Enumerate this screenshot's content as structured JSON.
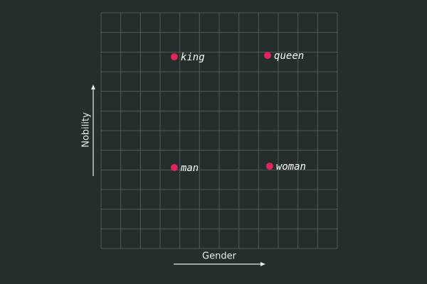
{
  "chart_data": {
    "type": "scatter",
    "x": [
      3.72,
      8.46,
      3.72,
      8.56
    ],
    "values": [
      9.76,
      9.83,
      4.12,
      4.19
    ],
    "labels": [
      "king",
      "queen",
      "man",
      "woman"
    ],
    "color": "#e0245e",
    "xlabel": "Gender",
    "ylabel": "Nobility",
    "xlim": [
      0,
      12
    ],
    "ylim": [
      0,
      12
    ]
  }
}
